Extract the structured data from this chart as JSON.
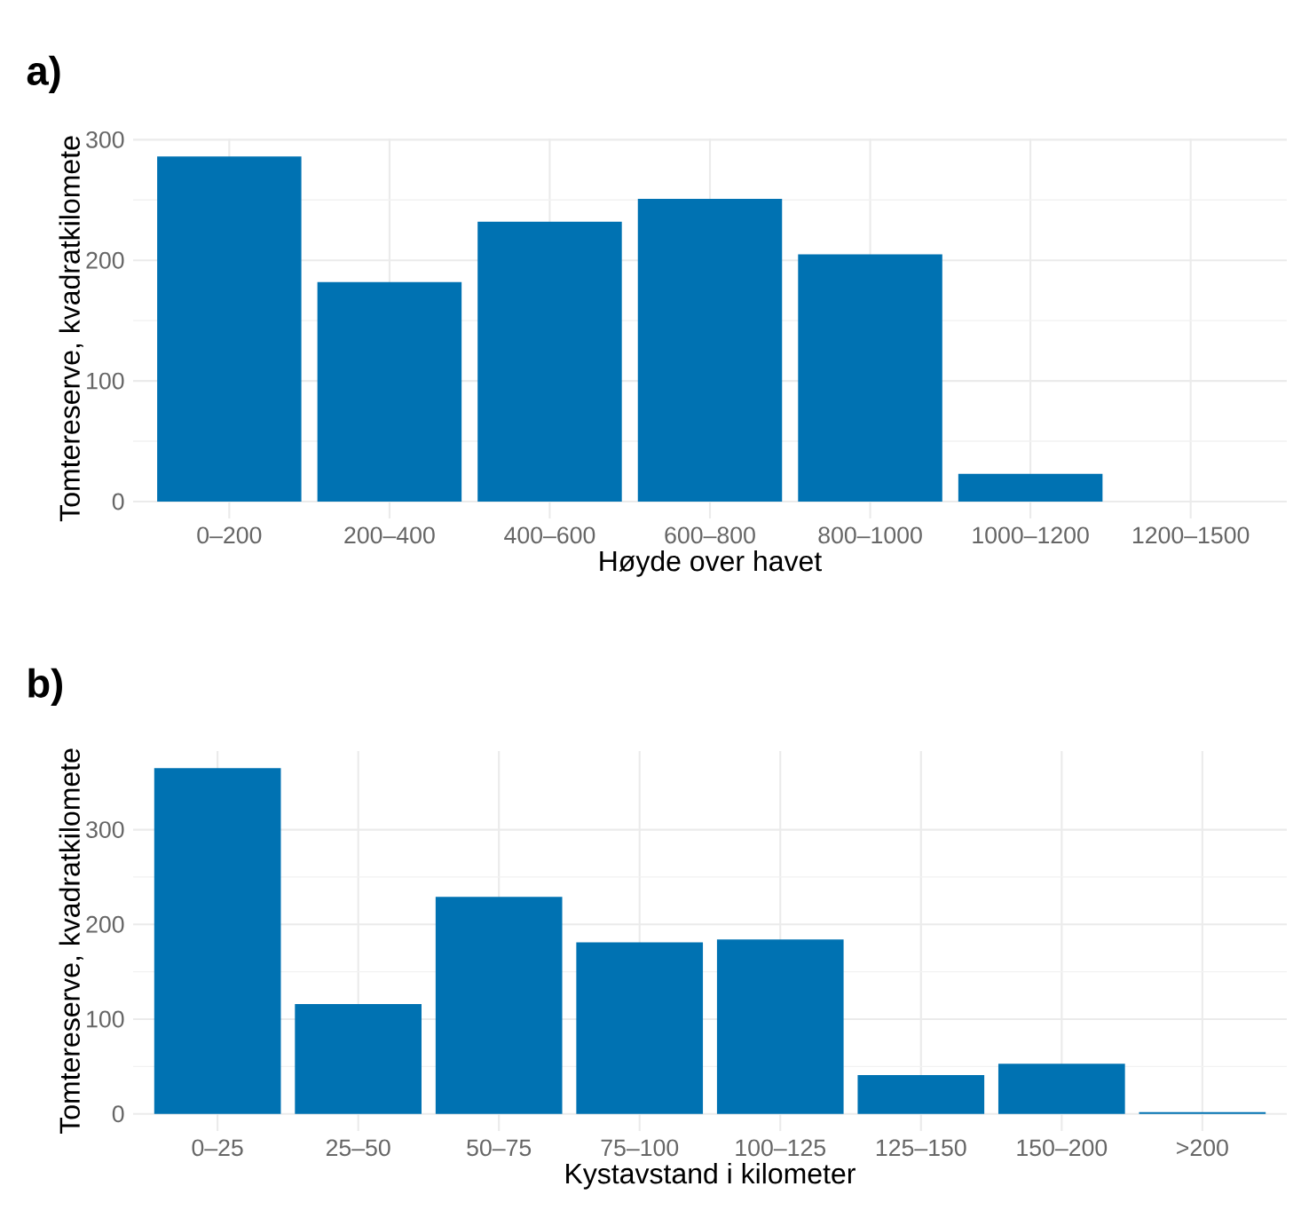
{
  "chart_data": [
    {
      "type": "bar",
      "title": "a)",
      "xlabel": "Høyde over havet",
      "ylabel": "Tomtereserve, kvadratkilomete",
      "categories": [
        "0–200",
        "200–400",
        "400–600",
        "600–800",
        "800–1000",
        "1000–1200",
        "1200–1500"
      ],
      "values": [
        286,
        182,
        232,
        251,
        205,
        23,
        0
      ],
      "color": "#0072b2",
      "ylim": [
        -14,
        301
      ],
      "yticks": [
        0,
        100,
        200,
        300
      ],
      "grid": true
    },
    {
      "type": "bar",
      "title": "b)",
      "xlabel": "Kystavstand i kilometer",
      "ylabel": "Tomtereserve, kvadratkilomete",
      "categories": [
        "0–25",
        "25–50",
        "50–75",
        "75–100",
        "100–125",
        "125–150",
        "150–200",
        ">200"
      ],
      "values": [
        365,
        116,
        229,
        181,
        184,
        41,
        53,
        2
      ],
      "color": "#0072b2",
      "ylim": [
        -18,
        383
      ],
      "yticks": [
        0,
        100,
        200,
        300
      ],
      "grid": true
    }
  ]
}
